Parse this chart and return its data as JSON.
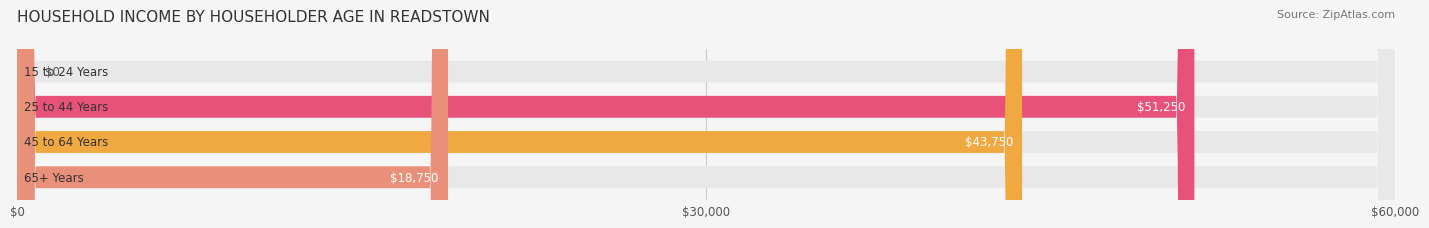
{
  "title": "HOUSEHOLD INCOME BY HOUSEHOLDER AGE IN READSTOWN",
  "source": "Source: ZipAtlas.com",
  "categories": [
    "15 to 24 Years",
    "25 to 44 Years",
    "45 to 64 Years",
    "65+ Years"
  ],
  "values": [
    0,
    51250,
    43750,
    18750
  ],
  "bar_colors": [
    "#b0aed0",
    "#e8517a",
    "#f0a840",
    "#e8907a"
  ],
  "xlim": [
    0,
    60000
  ],
  "xticks": [
    0,
    30000,
    60000
  ],
  "xtick_labels": [
    "$0",
    "$30,000",
    "$60,000"
  ],
  "value_labels": [
    "$0",
    "$51,250",
    "$43,750",
    "$18,750"
  ],
  "title_fontsize": 11,
  "source_fontsize": 8,
  "label_fontsize": 8.5,
  "tick_fontsize": 8.5,
  "bar_height": 0.62,
  "background_color": "#f5f5f5",
  "bar_bg_color": "#e8e8e8"
}
